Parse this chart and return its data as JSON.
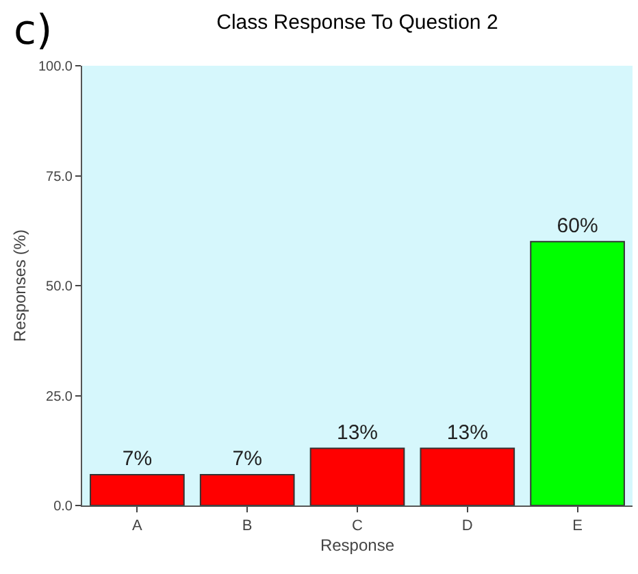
{
  "chart_data": {
    "type": "bar",
    "title": "Class Response To Question 2",
    "xlabel": "Response",
    "ylabel": "Responses (%)",
    "categories": [
      "A",
      "B",
      "C",
      "D",
      "E"
    ],
    "values": [
      7,
      7,
      13,
      13,
      60
    ],
    "colors": [
      "#ff0000",
      "#ff0000",
      "#ff0000",
      "#ff0000",
      "#00ff00"
    ],
    "value_labels": [
      "7%",
      "7%",
      "13%",
      "13%",
      "60%"
    ],
    "ylim": [
      0,
      100
    ],
    "yticks": [
      {
        "value": 0,
        "label": "0.0"
      },
      {
        "value": 25,
        "label": "25.0"
      },
      {
        "value": 50,
        "label": "50.0"
      },
      {
        "value": 75,
        "label": "75.0"
      },
      {
        "value": 100,
        "label": "100.0"
      }
    ],
    "grid": false,
    "annotations": [
      "c)"
    ]
  }
}
